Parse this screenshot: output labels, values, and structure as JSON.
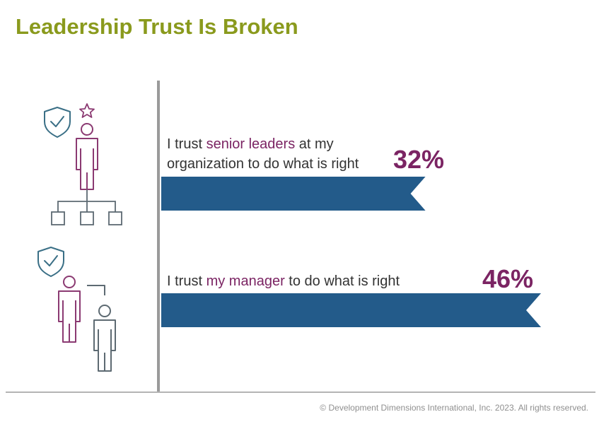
{
  "title": "Leadership Trust Is Broken",
  "footer": "© Development Dimensions International, Inc. 2023. All rights reserved.",
  "colors": {
    "title": "#8a9a1d",
    "bar": "#235b8a",
    "highlight": "#7b2463",
    "icon_teal": "#3a6f86",
    "icon_purple": "#8b3a72",
    "icon_gray": "#5d6a72"
  },
  "icons": [
    "shield-check-icon",
    "star-icon",
    "person-icon",
    "org-chart-icon",
    "shield-check-icon",
    "manager-employee-icon"
  ],
  "rows": [
    {
      "text_line1_pre": "I trust ",
      "text_line1_hl": "senior leaders",
      "text_line1_post": " at my",
      "text_line2": "organization to do what is right",
      "percent_label": "32%"
    },
    {
      "text_pre": "I trust ",
      "text_hl": "my manager",
      "text_post": " to do what is right",
      "percent_label": "46%"
    }
  ],
  "chart_data": {
    "type": "bar",
    "orientation": "horizontal",
    "title": "Leadership Trust Is Broken",
    "categories": [
      "I trust senior leaders at my organization to do what is right",
      "I trust my manager to do what is right"
    ],
    "values": [
      32,
      46
    ],
    "unit": "%",
    "grid": false
  }
}
